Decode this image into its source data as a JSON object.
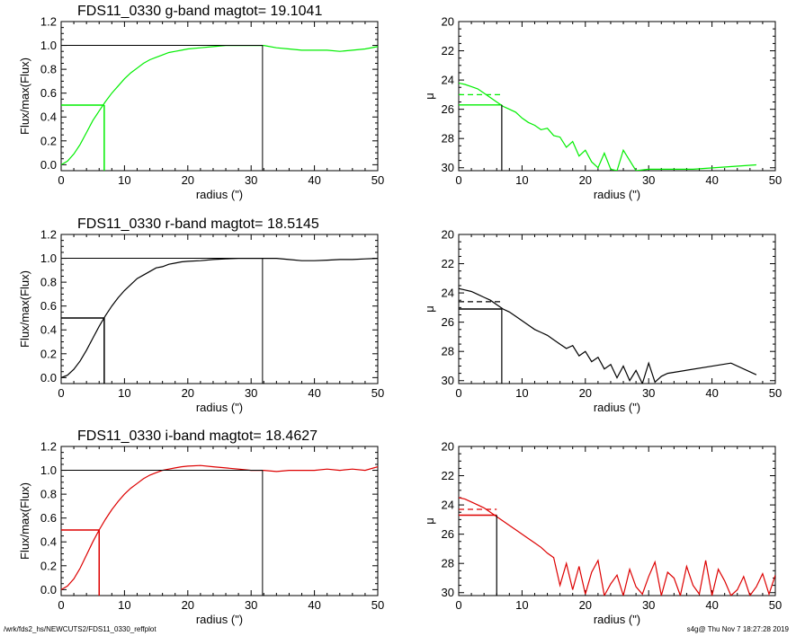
{
  "footer": {
    "path": "/wrk/fds2_hs/NEWCUTS2/FDS11_0330_reffplot",
    "stamp": "s4g@  Thu Nov  7 18:27:28 2019"
  },
  "colors": {
    "g": "#00ee00",
    "r": "#000000",
    "i": "#dd0000",
    "axis": "#000000"
  },
  "chart_data": [
    {
      "type": "line",
      "panel": "g-growth",
      "title": "FDS11_0330 g-band  magtot=     19.1041",
      "xlabel": "radius (\")",
      "ylabel": "Flux/max(Flux)",
      "xlim": [
        0,
        50
      ],
      "ylim": [
        -0.05,
        1.2
      ],
      "xticks": [
        "0",
        "10",
        "20",
        "30",
        "40",
        "50"
      ],
      "yticks": [
        "0.0",
        "0.2",
        "0.4",
        "0.6",
        "0.8",
        "1.0",
        "1.2"
      ],
      "color": "#00ee00",
      "x": [
        0,
        1,
        2,
        3,
        4,
        5,
        6,
        7,
        8,
        9,
        10,
        11,
        12,
        13,
        14,
        15,
        16,
        17,
        18,
        19,
        20,
        22,
        24,
        26,
        28,
        30,
        32,
        34,
        36,
        38,
        40,
        42,
        44,
        46,
        48,
        50
      ],
      "y": [
        0.0,
        0.03,
        0.09,
        0.17,
        0.27,
        0.37,
        0.45,
        0.53,
        0.6,
        0.66,
        0.72,
        0.77,
        0.81,
        0.85,
        0.88,
        0.9,
        0.92,
        0.94,
        0.95,
        0.96,
        0.97,
        0.98,
        0.99,
        1.0,
        1.0,
        1.0,
        1.0,
        0.98,
        0.97,
        0.96,
        0.96,
        0.96,
        0.95,
        0.96,
        0.97,
        0.99
      ],
      "reff": 6.8,
      "half_flux": 0.5,
      "rtot": 31.8,
      "total": 1.0
    },
    {
      "type": "line",
      "panel": "g-profile",
      "xlabel": "radius (\")",
      "ylabel": "μ",
      "xlim": [
        0,
        50
      ],
      "ylim": [
        30.2,
        20
      ],
      "xticks": [
        "0",
        "10",
        "20",
        "30",
        "40",
        "50"
      ],
      "yticks": [
        "20",
        "22",
        "24",
        "26",
        "28",
        "30"
      ],
      "color": "#00ee00",
      "x": [
        0,
        1,
        2,
        3,
        4,
        5,
        6,
        7,
        8,
        9,
        10,
        11,
        12,
        13,
        14,
        15,
        16,
        17,
        18,
        19,
        20,
        21,
        22,
        23,
        24,
        25,
        26,
        28,
        30,
        37,
        47
      ],
      "y": [
        24.2,
        24.3,
        24.45,
        24.6,
        24.9,
        25.2,
        25.5,
        25.8,
        26.0,
        26.2,
        26.6,
        26.9,
        27.1,
        27.4,
        27.3,
        27.8,
        27.9,
        28.6,
        28.2,
        29.2,
        28.8,
        29.6,
        30.0,
        29.0,
        30.1,
        30.2,
        28.8,
        30.2,
        30.1,
        30.1,
        29.8
      ],
      "reff": 6.8,
      "mu_eff": 25.7,
      "mu_mean": 25.0
    },
    {
      "type": "line",
      "panel": "r-growth",
      "title": "FDS11_0330 r-band  magtot=     18.5145",
      "xlabel": "radius (\")",
      "ylabel": "Flux/max(Flux)",
      "xlim": [
        0,
        50
      ],
      "ylim": [
        -0.05,
        1.2
      ],
      "xticks": [
        "0",
        "10",
        "20",
        "30",
        "40",
        "50"
      ],
      "yticks": [
        "0.0",
        "0.2",
        "0.4",
        "0.6",
        "0.8",
        "1.0",
        "1.2"
      ],
      "color": "#000000",
      "x": [
        0,
        1,
        2,
        3,
        4,
        5,
        6,
        7,
        8,
        9,
        10,
        11,
        12,
        13,
        14,
        15,
        16,
        17,
        18,
        19,
        20,
        22,
        24,
        26,
        28,
        30,
        32,
        34,
        36,
        38,
        40,
        42,
        44,
        46,
        48,
        50
      ],
      "y": [
        0.0,
        0.02,
        0.07,
        0.14,
        0.23,
        0.33,
        0.43,
        0.52,
        0.6,
        0.67,
        0.73,
        0.78,
        0.83,
        0.86,
        0.89,
        0.92,
        0.93,
        0.95,
        0.96,
        0.97,
        0.975,
        0.98,
        0.99,
        0.995,
        1.0,
        1.0,
        1.0,
        1.0,
        0.99,
        0.98,
        0.98,
        0.985,
        0.99,
        0.99,
        0.995,
        1.0
      ],
      "reff": 6.8,
      "half_flux": 0.5,
      "rtot": 31.8,
      "total": 1.0
    },
    {
      "type": "line",
      "panel": "r-profile",
      "xlabel": "radius (\")",
      "ylabel": "μ",
      "xlim": [
        0,
        50
      ],
      "ylim": [
        30.2,
        20
      ],
      "xticks": [
        "0",
        "10",
        "20",
        "30",
        "40",
        "50"
      ],
      "yticks": [
        "20",
        "22",
        "24",
        "26",
        "28",
        "30"
      ],
      "color": "#000000",
      "x": [
        0,
        1,
        2,
        3,
        4,
        5,
        6,
        7,
        8,
        9,
        10,
        11,
        12,
        13,
        14,
        15,
        16,
        17,
        18,
        19,
        20,
        21,
        22,
        23,
        24,
        25,
        26,
        27,
        28,
        29,
        30,
        31,
        32,
        33,
        43,
        47
      ],
      "y": [
        23.7,
        23.8,
        23.9,
        24.1,
        24.3,
        24.5,
        24.8,
        25.1,
        25.3,
        25.6,
        25.9,
        26.2,
        26.5,
        26.7,
        26.9,
        27.2,
        27.5,
        27.8,
        27.6,
        28.3,
        28.0,
        28.7,
        28.4,
        29.2,
        28.9,
        29.8,
        29.0,
        30.0,
        29.3,
        30.2,
        28.8,
        30.1,
        29.7,
        29.5,
        28.8,
        29.6
      ],
      "reff": 6.8,
      "mu_eff": 25.1,
      "mu_mean": 24.6
    },
    {
      "type": "line",
      "panel": "i-growth",
      "title": "FDS11_0330 i-band  magtot=     18.4627",
      "xlabel": "radius (\")",
      "ylabel": "Flux/max(Flux)",
      "xlim": [
        0,
        50
      ],
      "ylim": [
        -0.05,
        1.2
      ],
      "xticks": [
        "0",
        "10",
        "20",
        "30",
        "40",
        "50"
      ],
      "yticks": [
        "0.0",
        "0.2",
        "0.4",
        "0.6",
        "0.8",
        "1.0",
        "1.2"
      ],
      "color": "#dd0000",
      "x": [
        0,
        1,
        2,
        3,
        4,
        5,
        6,
        7,
        8,
        9,
        10,
        11,
        12,
        13,
        14,
        15,
        16,
        17,
        18,
        19,
        20,
        22,
        24,
        26,
        28,
        30,
        32,
        34,
        36,
        38,
        40,
        42,
        44,
        46,
        48,
        50
      ],
      "y": [
        0.0,
        0.03,
        0.09,
        0.18,
        0.29,
        0.4,
        0.5,
        0.59,
        0.67,
        0.74,
        0.8,
        0.85,
        0.89,
        0.93,
        0.96,
        0.98,
        1.0,
        1.01,
        1.02,
        1.03,
        1.035,
        1.04,
        1.03,
        1.02,
        1.01,
        1.0,
        1.0,
        0.99,
        1.0,
        1.0,
        1.0,
        1.01,
        1.0,
        1.01,
        1.0,
        1.03
      ],
      "reff": 6.0,
      "half_flux": 0.5,
      "rtot": 31.8,
      "total": 1.0
    },
    {
      "type": "line",
      "panel": "i-profile",
      "xlabel": "radius (\")",
      "ylabel": "μ",
      "xlim": [
        0,
        50
      ],
      "ylim": [
        30.2,
        20
      ],
      "xticks": [
        "0",
        "10",
        "20",
        "30",
        "40",
        "50"
      ],
      "yticks": [
        "20",
        "22",
        "24",
        "26",
        "28",
        "30"
      ],
      "color": "#dd0000",
      "x": [
        0,
        1,
        2,
        3,
        4,
        5,
        6,
        7,
        8,
        9,
        10,
        11,
        12,
        13,
        14,
        15,
        16,
        17,
        18,
        19,
        20,
        21,
        22,
        23,
        24,
        25,
        26,
        27,
        28,
        29,
        30,
        31,
        32,
        33,
        34,
        35,
        36,
        37,
        38,
        39,
        40,
        41,
        42,
        43,
        44,
        45,
        46,
        47,
        48,
        49,
        50
      ],
      "y": [
        23.5,
        23.6,
        23.8,
        24.0,
        24.2,
        24.5,
        24.8,
        25.1,
        25.4,
        25.7,
        26.0,
        26.3,
        26.6,
        26.9,
        27.3,
        27.6,
        29.5,
        28.0,
        29.8,
        28.2,
        30.1,
        28.6,
        27.8,
        30.2,
        29.4,
        28.8,
        30.2,
        28.4,
        29.6,
        30.1,
        28.9,
        27.9,
        30.2,
        28.6,
        29.0,
        30.2,
        28.2,
        29.5,
        30.1,
        27.8,
        30.2,
        28.4,
        29.2,
        30.2,
        29.8,
        28.9,
        30.2,
        29.6,
        28.7,
        30.1,
        28.8
      ],
      "reff": 6.0,
      "mu_eff": 24.7,
      "mu_mean": 24.3
    }
  ]
}
